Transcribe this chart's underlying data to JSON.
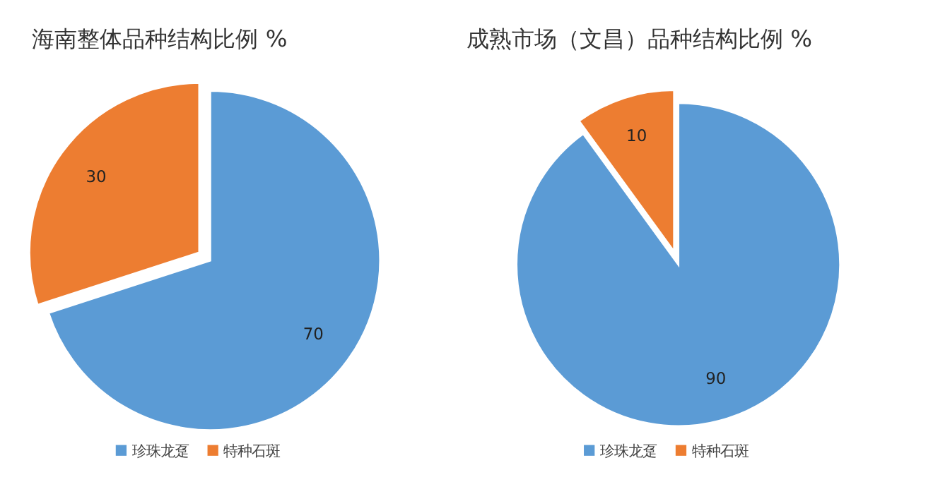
{
  "chart_data": [
    {
      "type": "pie",
      "title": "海南整体品种结构比例 %",
      "categories": [
        "珍珠龙趸",
        "特种石斑"
      ],
      "values": [
        70,
        30
      ],
      "colors": [
        "#5b9bd5",
        "#ed7d31"
      ],
      "data_labels": true,
      "legend": "bottom"
    },
    {
      "type": "pie",
      "title": "成熟市场（文昌）品种结构比例 %",
      "categories": [
        "珍珠龙趸",
        "特种石斑"
      ],
      "values": [
        90,
        10
      ],
      "colors": [
        "#5b9bd5",
        "#ed7d31"
      ],
      "data_labels": true,
      "legend": "bottom"
    }
  ]
}
